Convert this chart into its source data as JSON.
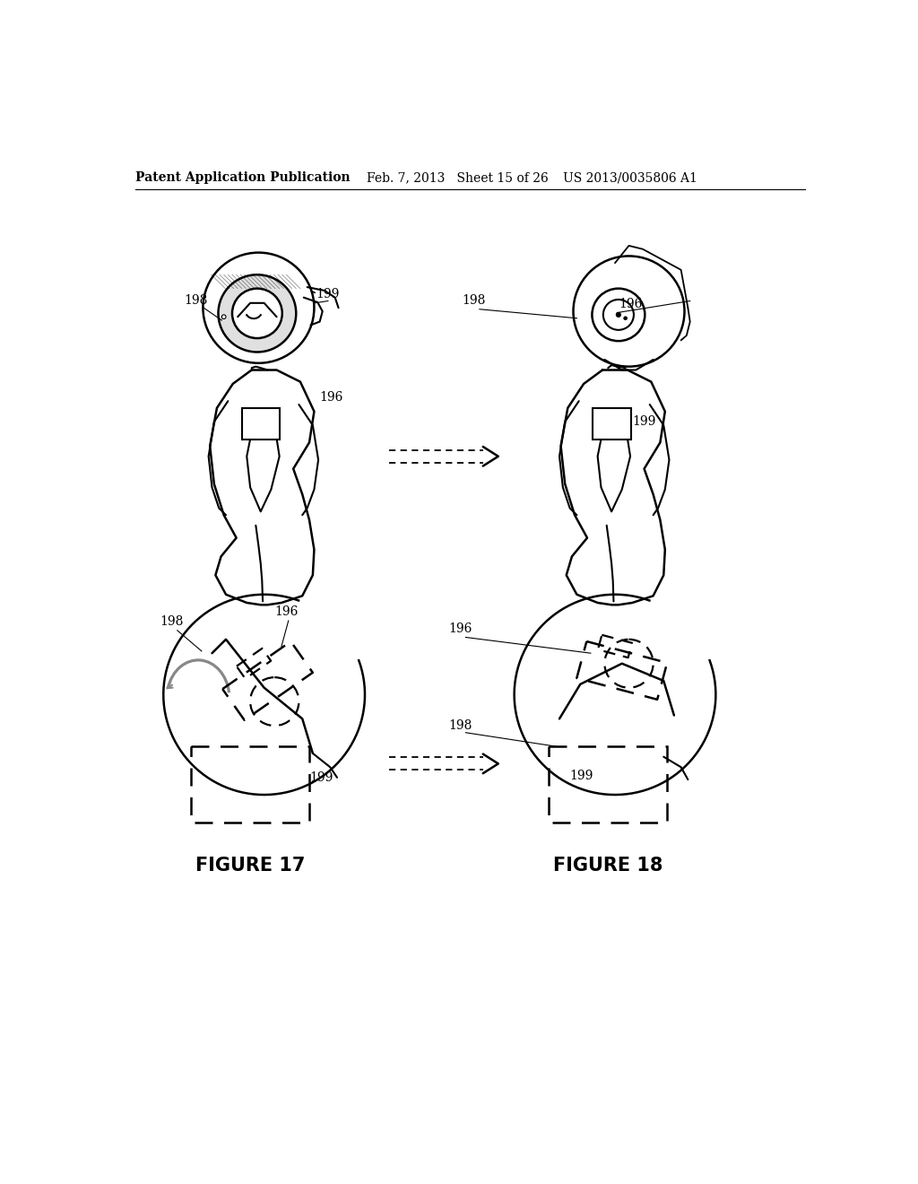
{
  "bg_color": "#ffffff",
  "header_left": "Patent Application Publication",
  "header_mid": "Feb. 7, 2013   Sheet 15 of 26",
  "header_right": "US 2013/0035806 A1",
  "figure17_label": "FIGURE 17",
  "figure18_label": "FIGURE 18",
  "fig_label_fontsize": 15,
  "header_fontsize": 10
}
